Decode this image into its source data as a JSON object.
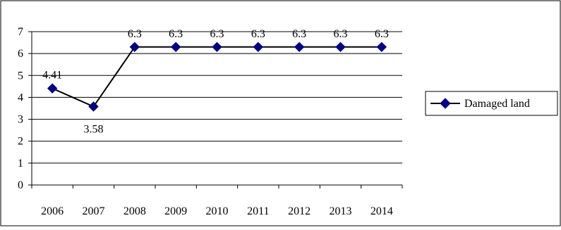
{
  "chart_data": {
    "type": "line",
    "title": "",
    "xlabel": "",
    "ylabel": "",
    "categories": [
      "2006",
      "2007",
      "2008",
      "2009",
      "2010",
      "2011",
      "2012",
      "2013",
      "2014"
    ],
    "series": [
      {
        "name": "Damaged land",
        "values": [
          4.41,
          3.58,
          6.3,
          6.3,
          6.3,
          6.3,
          6.3,
          6.3,
          6.3
        ],
        "data_labels": [
          "4.41",
          "3.58",
          "6.3",
          "6.3",
          "6.3",
          "6.3",
          "6.3",
          "6.3",
          "6.3"
        ],
        "color": "#000000",
        "marker_color": "#000080",
        "marker": "diamond"
      }
    ],
    "yticks": [
      "0",
      "1",
      "2",
      "3",
      "4",
      "5",
      "6",
      "7"
    ],
    "ylim": [
      0,
      7
    ],
    "grid": true,
    "legend_position": "right"
  }
}
